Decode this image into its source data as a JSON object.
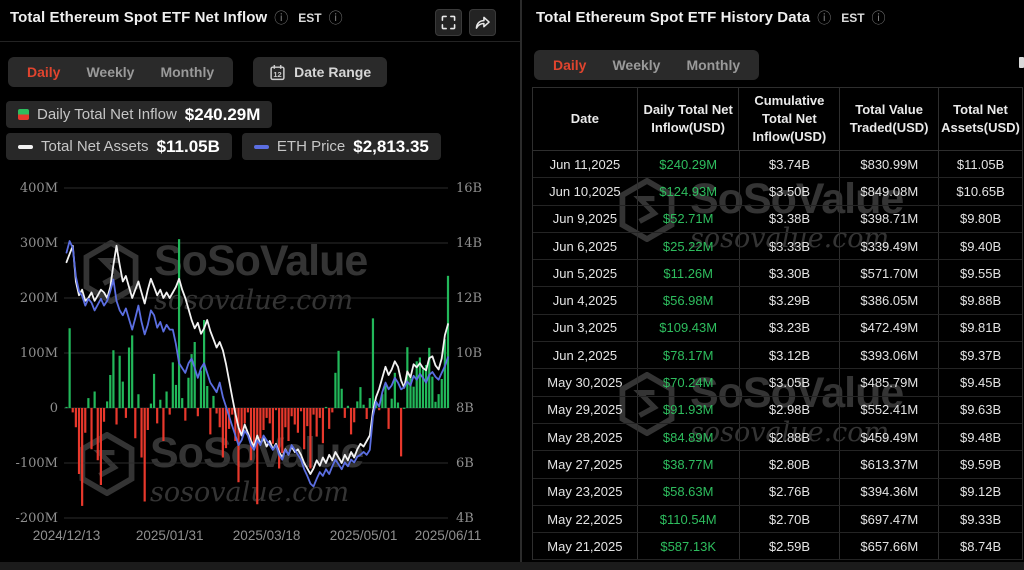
{
  "watermark": {
    "brand": "SoSoValue",
    "domain": "sosovalue.com"
  },
  "colors": {
    "accent_red": "#e0442e",
    "value_green": "#2ebd5e",
    "bar_green": "#22b85a",
    "bar_red": "#e8382c",
    "line_white": "#f2f2f2",
    "line_blue": "#5b6ee1",
    "grid": "#2b2b2b",
    "axis_text": "#8f8f8f"
  },
  "left_panel": {
    "title": "Total Ethereum Spot ETF Net Inflow",
    "timezone": "EST",
    "tabs": [
      {
        "label": "Daily",
        "active": true
      },
      {
        "label": "Weekly",
        "active": false
      },
      {
        "label": "Monthly",
        "active": false
      }
    ],
    "date_range": {
      "label": "Date Range",
      "calendar_day": "12"
    },
    "legend": {
      "inflow_label": "Daily Total Net Inflow",
      "inflow_value": "$240.29M",
      "assets_label": "Total Net Assets",
      "assets_value": "$11.05B",
      "price_label": "ETH Price",
      "price_value": "$2,813.35"
    }
  },
  "chart_data": {
    "type": "composite",
    "title": "Total Ethereum Spot ETF Net Inflow (daily bars, USD M) with Total Net Assets and ETH Price lines",
    "x_tick_labels": [
      "2024/12/13",
      "2025/01/31",
      "2025/03/18",
      "2025/05/01",
      "2025/06/11"
    ],
    "x_ticks": [
      {
        "index": 0,
        "label": "2024/12/13"
      },
      {
        "index": 33,
        "label": "2025/01/31"
      },
      {
        "index": 64,
        "label": "2025/03/18"
      },
      {
        "index": 95,
        "label": "2025/05/01"
      },
      {
        "index": 122,
        "label": "2025/06/11"
      }
    ],
    "left_axis": {
      "unit": "USD M",
      "range": [
        -200,
        400
      ],
      "ticks": [
        "400M",
        "300M",
        "200M",
        "100M",
        "0",
        "-100M",
        "-200M"
      ]
    },
    "right_axis": {
      "unit": "USD B",
      "range": [
        4,
        16
      ],
      "ticks": [
        "16B",
        "14B",
        "12B",
        "10B",
        "8B",
        "6B",
        "4B"
      ]
    },
    "grid": true,
    "legend_position": "top",
    "series": [
      {
        "name": "Daily Total Net Inflow",
        "type": "bar",
        "unit": "USD M",
        "axis": "left",
        "note": "values estimated from pixels except last 15 trading days which match the history table",
        "values": [
          2,
          145,
          -8,
          -35,
          -120,
          -178,
          -45,
          18,
          -75,
          30,
          -95,
          -140,
          -25,
          12,
          60,
          105,
          -30,
          95,
          48,
          -18,
          110,
          132,
          -55,
          25,
          -90,
          -170,
          -40,
          8,
          62,
          -28,
          15,
          -60,
          30,
          -12,
          83,
          42,
          307,
          18,
          -23,
          55,
          98,
          120,
          -15,
          68,
          160,
          40,
          -48,
          22,
          -10,
          -35,
          -90,
          -73,
          -38,
          -12,
          -60,
          -135,
          -48,
          -28,
          -8,
          -95,
          -73,
          -175,
          -55,
          -40,
          -18,
          -28,
          -65,
          -4,
          -110,
          -82,
          -35,
          -60,
          -15,
          -30,
          -45,
          -6,
          -75,
          -33,
          -110,
          -12,
          -52,
          -18,
          -64,
          2,
          -38,
          -8,
          64,
          104,
          35,
          -18,
          4,
          -48,
          -26,
          12,
          38,
          6,
          -20,
          18,
          163,
          8,
          -4,
          25,
          41,
          -38,
          17,
          64,
          10,
          -88,
          0.59,
          110.54,
          58.63,
          38.77,
          84.89,
          91.93,
          70.24,
          78.17,
          109.43,
          56.98,
          11.26,
          25.22,
          52.71,
          124.93,
          240.29
        ]
      },
      {
        "name": "Total Net Assets",
        "type": "line",
        "unit": "USD B",
        "axis": "right",
        "color": "#f2f2f2",
        "values": [
          13.3,
          13.6,
          13.9,
          12.6,
          12.1,
          12.3,
          11.9,
          12.0,
          12.2,
          11.9,
          12.1,
          12.3,
          12.2,
          12.0,
          12.4,
          13.2,
          13.9,
          13.2,
          12.6,
          12.8,
          12.4,
          12.0,
          12.3,
          12.6,
          12.2,
          11.8,
          12.3,
          12.7,
          12.4,
          12.1,
          12.3,
          12.0,
          12.2,
          12.0,
          12.2,
          12.4,
          12.7,
          12.3,
          12.0,
          11.6,
          11.2,
          10.9,
          11.1,
          10.7,
          10.9,
          11.2,
          10.8,
          10.5,
          10.2,
          10.4,
          10.1,
          9.6,
          9.0,
          8.4,
          7.8,
          7.3,
          7.0,
          7.4,
          7.1,
          6.8,
          6.6,
          7.0,
          6.7,
          6.9,
          6.6,
          6.8,
          6.5,
          6.7,
          6.4,
          6.2,
          6.5,
          6.3,
          6.6,
          6.4,
          6.5,
          6.3,
          6.0,
          5.8,
          5.6,
          5.8,
          6.1,
          5.9,
          6.2,
          6.0,
          6.3,
          6.1,
          6.4,
          6.2,
          6.0,
          6.3,
          6.1,
          6.4,
          6.2,
          6.5,
          6.7,
          6.6,
          6.8,
          7.0,
          7.9,
          8.4,
          8.7,
          9.1,
          9.5,
          9.2,
          9.4,
          9.7,
          9.5,
          9.0,
          8.74,
          9.33,
          9.12,
          9.59,
          9.48,
          9.63,
          9.45,
          9.37,
          9.81,
          9.88,
          9.55,
          9.4,
          9.8,
          10.65,
          11.05
        ]
      },
      {
        "name": "ETH Price",
        "type": "line",
        "unit": "USD",
        "axis": "right",
        "color": "#5b6ee1",
        "scale_to_right_axis": 0.0035,
        "values": [
          3900,
          4020,
          3950,
          3650,
          3500,
          3450,
          3350,
          3420,
          3380,
          3300,
          3360,
          3420,
          3350,
          3400,
          3500,
          3620,
          3400,
          3300,
          3250,
          3320,
          3210,
          3100,
          3220,
          3350,
          3180,
          3050,
          3150,
          3300,
          3250,
          3120,
          3180,
          3080,
          3150,
          3100,
          3100,
          2950,
          2750,
          2700,
          2650,
          2750,
          2800,
          2700,
          2600,
          2700,
          2750,
          2650,
          2550,
          2500,
          2450,
          2550,
          2400,
          2300,
          2200,
          2100,
          2000,
          1900,
          1950,
          2050,
          2000,
          1900,
          1850,
          1950,
          1900,
          2000,
          1950,
          1900,
          1850,
          1900,
          1800,
          1750,
          1850,
          1800,
          1900,
          1850,
          1800,
          1750,
          1650,
          1580,
          1500,
          1470,
          1550,
          1620,
          1580,
          1650,
          1600,
          1680,
          1750,
          1700,
          1650,
          1720,
          1680,
          1750,
          1720,
          1780,
          1800,
          1830,
          1800,
          1850,
          2200,
          2350,
          2300,
          2450,
          2550,
          2480,
          2520,
          2600,
          2550,
          2480,
          2500,
          2560,
          2520,
          2620,
          2580,
          2640,
          2600,
          2550,
          2630,
          2660,
          2610,
          2580,
          2650,
          2720,
          2813.35
        ]
      }
    ]
  },
  "right_panel": {
    "title": "Total Ethereum Spot ETF History Data",
    "timezone": "EST",
    "tabs": [
      {
        "label": "Daily",
        "active": true
      },
      {
        "label": "Weekly",
        "active": false
      },
      {
        "label": "Monthly",
        "active": false
      }
    ],
    "table": {
      "columns": [
        "Date",
        "Daily Total Net Inflow(USD)",
        "Cumulative Total Net Inflow(USD)",
        "Total Value Traded(USD)",
        "Total Net Assets(USD)"
      ],
      "rows": [
        [
          "Jun 11,2025",
          "$240.29M",
          "$3.74B",
          "$830.99M",
          "$11.05B"
        ],
        [
          "Jun 10,2025",
          "$124.93M",
          "$3.50B",
          "$849.08M",
          "$10.65B"
        ],
        [
          "Jun 9,2025",
          "$52.71M",
          "$3.38B",
          "$398.71M",
          "$9.80B"
        ],
        [
          "Jun 6,2025",
          "$25.22M",
          "$3.33B",
          "$339.49M",
          "$9.40B"
        ],
        [
          "Jun 5,2025",
          "$11.26M",
          "$3.30B",
          "$571.70M",
          "$9.55B"
        ],
        [
          "Jun 4,2025",
          "$56.98M",
          "$3.29B",
          "$386.05M",
          "$9.88B"
        ],
        [
          "Jun 3,2025",
          "$109.43M",
          "$3.23B",
          "$472.49M",
          "$9.81B"
        ],
        [
          "Jun 2,2025",
          "$78.17M",
          "$3.12B",
          "$393.06M",
          "$9.37B"
        ],
        [
          "May 30,2025",
          "$70.24M",
          "$3.05B",
          "$485.79M",
          "$9.45B"
        ],
        [
          "May 29,2025",
          "$91.93M",
          "$2.98B",
          "$552.41M",
          "$9.63B"
        ],
        [
          "May 28,2025",
          "$84.89M",
          "$2.88B",
          "$459.49M",
          "$9.48B"
        ],
        [
          "May 27,2025",
          "$38.77M",
          "$2.80B",
          "$613.37M",
          "$9.59B"
        ],
        [
          "May 23,2025",
          "$58.63M",
          "$2.76B",
          "$394.36M",
          "$9.12B"
        ],
        [
          "May 22,2025",
          "$110.54M",
          "$2.70B",
          "$697.47M",
          "$9.33B"
        ],
        [
          "May 21,2025",
          "$587.13K",
          "$2.59B",
          "$657.66M",
          "$8.74B"
        ]
      ]
    }
  }
}
